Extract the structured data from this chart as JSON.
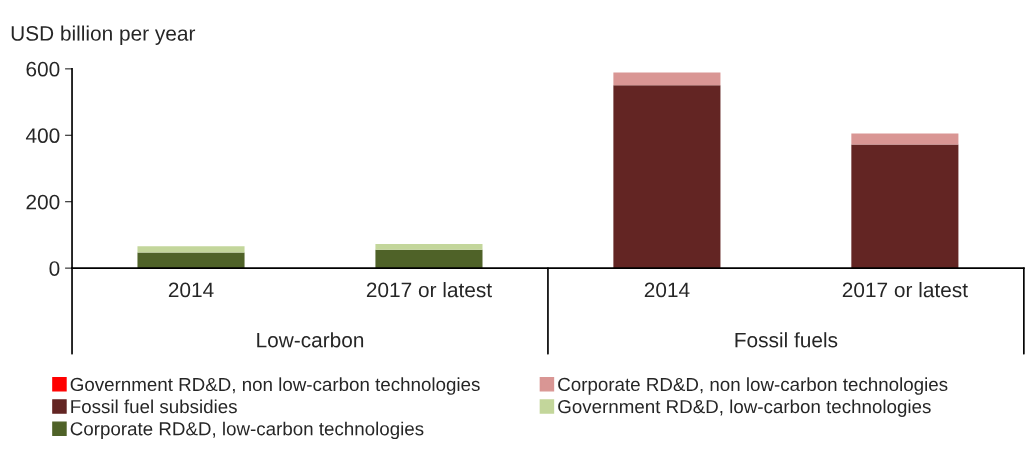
{
  "chart_data": {
    "type": "bar",
    "stacked": true,
    "ylabel": "USD billion per year",
    "categories": [
      "2014",
      "2017 or latest",
      "2014",
      "2017 or latest"
    ],
    "annotations": [
      "Low-carbon",
      "Fossil fuels"
    ],
    "series": [
      {
        "name": "Corporate RD&D, low-carbon technologies",
        "color": "#4f6228",
        "values": [
          47,
          55,
          null,
          null
        ]
      },
      {
        "name": "Government RD&D, low-carbon technologies",
        "color": "#c3d69b",
        "values": [
          19,
          18,
          null,
          null
        ]
      },
      {
        "name": "Fossil fuel subsidies",
        "color": "#632523",
        "values": [
          null,
          null,
          551,
          372
        ]
      },
      {
        "name": "Corporate RD&D, non low-carbon technologies",
        "color": "#d99694",
        "values": [
          null,
          null,
          38,
          33
        ]
      },
      {
        "name": "Government RD&D, non low-carbon technologies",
        "color": "#ff0000",
        "values": [
          null,
          null,
          null,
          null
        ]
      }
    ],
    "ylim": [
      0,
      600
    ],
    "yticks": [
      0,
      200,
      400,
      600
    ],
    "grid": false,
    "legend": "bottom"
  }
}
